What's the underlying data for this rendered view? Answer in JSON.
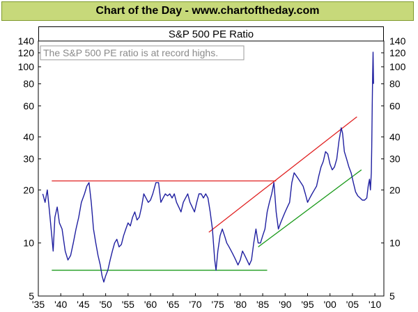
{
  "banner": {
    "title": "Chart of the Day - www.chartoftheday.com"
  },
  "chart_data": {
    "type": "line",
    "title": "S&P 500 PE Ratio",
    "annotation": "The S&P 500 PE ratio is at record highs.",
    "xlabel": "",
    "ylabel": "",
    "y_scale": "log",
    "ylim": [
      5,
      140
    ],
    "xlim": [
      1935,
      2012
    ],
    "grid": false,
    "y_ticks": [
      5,
      10,
      20,
      30,
      40,
      60,
      80,
      100,
      120,
      140
    ],
    "x_ticks": [
      {
        "value": 1935,
        "label": "'35"
      },
      {
        "value": 1940,
        "label": "'40"
      },
      {
        "value": 1945,
        "label": "'45"
      },
      {
        "value": 1950,
        "label": "'50"
      },
      {
        "value": 1955,
        "label": "'55"
      },
      {
        "value": 1960,
        "label": "'60"
      },
      {
        "value": 1965,
        "label": "'65"
      },
      {
        "value": 1970,
        "label": "'70"
      },
      {
        "value": 1975,
        "label": "'75"
      },
      {
        "value": 1980,
        "label": "'80"
      },
      {
        "value": 1985,
        "label": "'85"
      },
      {
        "value": 1990,
        "label": "'90"
      },
      {
        "value": 1995,
        "label": "'95"
      },
      {
        "value": 2000,
        "label": "'00"
      },
      {
        "value": 2005,
        "label": "'05"
      },
      {
        "value": 2010,
        "label": "'10"
      }
    ],
    "series": [
      {
        "color": "#1f1fa0",
        "points": [
          [
            1936.0,
            19
          ],
          [
            1936.5,
            17
          ],
          [
            1937.0,
            20
          ],
          [
            1937.5,
            15
          ],
          [
            1938.0,
            11
          ],
          [
            1938.3,
            9
          ],
          [
            1938.7,
            14
          ],
          [
            1939.2,
            16
          ],
          [
            1939.7,
            13
          ],
          [
            1940.3,
            12
          ],
          [
            1941.0,
            9
          ],
          [
            1941.6,
            8
          ],
          [
            1942.2,
            8.5
          ],
          [
            1942.8,
            10
          ],
          [
            1943.4,
            12
          ],
          [
            1944.0,
            14
          ],
          [
            1944.6,
            17
          ],
          [
            1945.3,
            19
          ],
          [
            1945.8,
            21
          ],
          [
            1946.3,
            22
          ],
          [
            1946.8,
            17
          ],
          [
            1947.3,
            12
          ],
          [
            1947.8,
            10
          ],
          [
            1948.3,
            8.5
          ],
          [
            1948.8,
            7.5
          ],
          [
            1949.2,
            6.5
          ],
          [
            1949.6,
            6
          ],
          [
            1950.0,
            6.5
          ],
          [
            1950.5,
            7
          ],
          [
            1951.0,
            8
          ],
          [
            1951.5,
            9
          ],
          [
            1952.0,
            10
          ],
          [
            1952.5,
            10.5
          ],
          [
            1953.0,
            9.5
          ],
          [
            1953.5,
            9.8
          ],
          [
            1954.0,
            11
          ],
          [
            1954.5,
            12
          ],
          [
            1955.0,
            13
          ],
          [
            1955.5,
            12.5
          ],
          [
            1956.0,
            14
          ],
          [
            1956.5,
            15
          ],
          [
            1957.0,
            13.5
          ],
          [
            1957.5,
            14
          ],
          [
            1958.0,
            16
          ],
          [
            1958.5,
            19
          ],
          [
            1959.0,
            18
          ],
          [
            1959.5,
            17
          ],
          [
            1960.0,
            17.5
          ],
          [
            1960.5,
            19
          ],
          [
            1961.2,
            22
          ],
          [
            1961.8,
            22
          ],
          [
            1962.3,
            17
          ],
          [
            1962.8,
            18
          ],
          [
            1963.3,
            19
          ],
          [
            1963.8,
            18.5
          ],
          [
            1964.3,
            19
          ],
          [
            1964.8,
            18
          ],
          [
            1965.3,
            19
          ],
          [
            1965.8,
            17
          ],
          [
            1966.3,
            16
          ],
          [
            1966.8,
            15
          ],
          [
            1967.3,
            17
          ],
          [
            1967.8,
            18
          ],
          [
            1968.3,
            19
          ],
          [
            1968.8,
            17
          ],
          [
            1969.3,
            16
          ],
          [
            1969.8,
            15
          ],
          [
            1970.3,
            17
          ],
          [
            1970.8,
            19
          ],
          [
            1971.3,
            19
          ],
          [
            1971.8,
            18
          ],
          [
            1972.3,
            19
          ],
          [
            1972.8,
            18
          ],
          [
            1973.3,
            15
          ],
          [
            1973.8,
            12
          ],
          [
            1974.3,
            8
          ],
          [
            1974.6,
            7
          ],
          [
            1975.0,
            9
          ],
          [
            1975.5,
            11
          ],
          [
            1976.0,
            12
          ],
          [
            1976.5,
            11
          ],
          [
            1977.0,
            10
          ],
          [
            1977.5,
            9.5
          ],
          [
            1978.0,
            9
          ],
          [
            1978.5,
            8.5
          ],
          [
            1979.0,
            8
          ],
          [
            1979.5,
            7.5
          ],
          [
            1980.0,
            8
          ],
          [
            1980.5,
            9
          ],
          [
            1981.0,
            8.5
          ],
          [
            1981.5,
            8
          ],
          [
            1982.0,
            7.5
          ],
          [
            1982.5,
            8
          ],
          [
            1983.0,
            10
          ],
          [
            1983.5,
            12
          ],
          [
            1984.0,
            10
          ],
          [
            1984.5,
            10
          ],
          [
            1985.0,
            11
          ],
          [
            1985.5,
            12
          ],
          [
            1986.0,
            15
          ],
          [
            1986.5,
            17
          ],
          [
            1987.0,
            19
          ],
          [
            1987.5,
            22
          ],
          [
            1988.0,
            15
          ],
          [
            1988.5,
            12
          ],
          [
            1989.0,
            13
          ],
          [
            1989.5,
            14
          ],
          [
            1990.0,
            15
          ],
          [
            1990.5,
            16
          ],
          [
            1991.0,
            17
          ],
          [
            1991.5,
            22
          ],
          [
            1992.0,
            25
          ],
          [
            1992.5,
            24
          ],
          [
            1993.0,
            23
          ],
          [
            1993.5,
            22
          ],
          [
            1994.0,
            21
          ],
          [
            1994.5,
            19
          ],
          [
            1995.0,
            17
          ],
          [
            1995.5,
            18
          ],
          [
            1996.0,
            19
          ],
          [
            1996.5,
            20
          ],
          [
            1997.0,
            21
          ],
          [
            1997.5,
            24
          ],
          [
            1998.0,
            27
          ],
          [
            1998.5,
            29
          ],
          [
            1999.0,
            33
          ],
          [
            1999.5,
            32
          ],
          [
            2000.0,
            28
          ],
          [
            2000.5,
            26
          ],
          [
            2001.0,
            27
          ],
          [
            2001.5,
            30
          ],
          [
            2002.0,
            38
          ],
          [
            2002.5,
            45
          ],
          [
            2002.8,
            42
          ],
          [
            2003.2,
            33
          ],
          [
            2003.7,
            30
          ],
          [
            2004.2,
            27
          ],
          [
            2004.7,
            25
          ],
          [
            2005.2,
            22
          ],
          [
            2005.7,
            19.5
          ],
          [
            2006.2,
            18.5
          ],
          [
            2006.7,
            18
          ],
          [
            2007.2,
            17.5
          ],
          [
            2007.7,
            17.5
          ],
          [
            2008.2,
            18
          ],
          [
            2008.5,
            21
          ],
          [
            2008.8,
            23
          ],
          [
            2009.0,
            20
          ],
          [
            2009.2,
            25
          ],
          [
            2009.3,
            35
          ],
          [
            2009.4,
            60
          ],
          [
            2009.5,
            90
          ],
          [
            2009.6,
            121
          ],
          [
            2009.7,
            80
          ]
        ]
      }
    ],
    "trendlines": [
      {
        "color": "#e02020",
        "from": [
          1938,
          22.5
        ],
        "to": [
          1988,
          22.5
        ]
      },
      {
        "color": "#1a9a1a",
        "from": [
          1938,
          7.0
        ],
        "to": [
          1986,
          7.0
        ]
      },
      {
        "color": "#e02020",
        "from": [
          1973,
          11.5
        ],
        "to": [
          2006,
          52
        ]
      },
      {
        "color": "#1a9a1a",
        "from": [
          1984,
          9.5
        ],
        "to": [
          2007,
          26
        ]
      }
    ]
  }
}
